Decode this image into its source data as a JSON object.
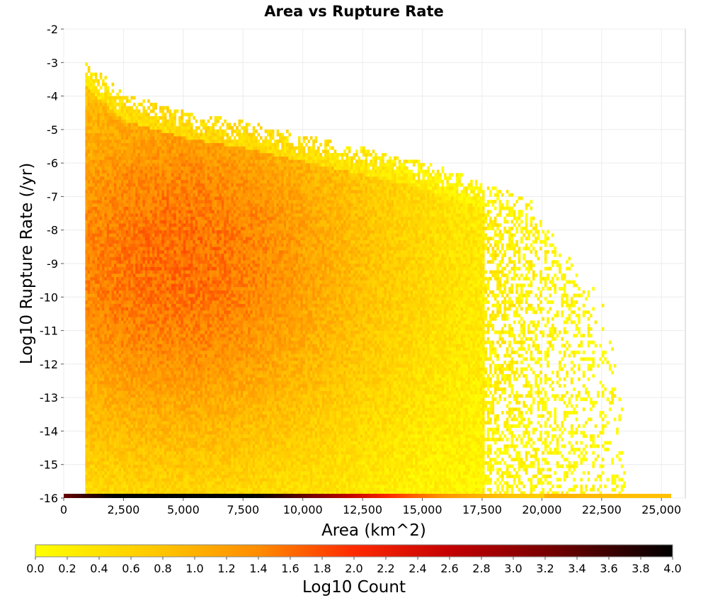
{
  "chart_data": {
    "type": "heatmap",
    "title": "Area vs Rupture Rate",
    "xlabel": "Area (km^2)",
    "ylabel": "Log10 Rupture Rate (/yr)",
    "xlim": [
      0,
      26000
    ],
    "ylim": [
      -16,
      -2
    ],
    "x_ticks": [
      0,
      2500,
      5000,
      7500,
      10000,
      12500,
      15000,
      17500,
      20000,
      22500,
      25000
    ],
    "x_tick_labels": [
      "0",
      "2,500",
      "5,000",
      "7,500",
      "10,000",
      "12,500",
      "15,000",
      "17,500",
      "20,000",
      "22,500",
      "25,000"
    ],
    "y_ticks": [
      -2,
      -3,
      -4,
      -5,
      -6,
      -7,
      -8,
      -9,
      -10,
      -11,
      -12,
      -13,
      -14,
      -15,
      -16
    ],
    "y_tick_labels": [
      "-2",
      "-3",
      "-4",
      "-5",
      "-6",
      "-7",
      "-8",
      "-9",
      "-10",
      "-11",
      "-12",
      "-13",
      "-14",
      "-15",
      "-16"
    ],
    "grid": true,
    "colorbar": {
      "label": "Log10 Count",
      "range": [
        0,
        4
      ],
      "ticks": [
        0.0,
        0.2,
        0.4,
        0.6,
        0.8,
        1.0,
        1.2,
        1.4,
        1.6,
        1.8,
        2.0,
        2.2,
        2.4,
        2.6,
        2.8,
        3.0,
        3.2,
        3.4,
        3.6,
        3.8,
        4.0
      ],
      "tick_labels": [
        "0.0",
        "0.2",
        "0.4",
        "0.6",
        "0.8",
        "1.0",
        "1.2",
        "1.4",
        "1.6",
        "1.8",
        "2.0",
        "2.2",
        "2.4",
        "2.6",
        "2.8",
        "3.0",
        "3.2",
        "3.4",
        "3.6",
        "3.8",
        "4.0"
      ],
      "colors": [
        "#ffff00",
        "#ffa500",
        "#ff0000",
        "#000000"
      ],
      "placement": "bottom"
    },
    "bin_width_x": 100,
    "bin_height_y": 0.1,
    "data_extent": {
      "area_min": 900,
      "area_max": 25400,
      "log_rate_min": -16,
      "log_rate_max": -3
    },
    "envelope": [
      {
        "area": 900,
        "log_rate_max": -3.0
      },
      {
        "area": 2500,
        "log_rate_max": -4.0
      },
      {
        "area": 5000,
        "log_rate_max": -4.5
      },
      {
        "area": 7500,
        "log_rate_max": -4.8
      },
      {
        "area": 10000,
        "log_rate_max": -5.2
      },
      {
        "area": 12500,
        "log_rate_max": -5.6
      },
      {
        "area": 15000,
        "log_rate_max": -6.0
      },
      {
        "area": 17500,
        "log_rate_max": -6.6
      },
      {
        "area": 19500,
        "log_rate_max": -7.2
      },
      {
        "area": 20500,
        "log_rate_max": -8.2
      },
      {
        "area": 22500,
        "log_rate_max": -10.0
      },
      {
        "area": 23500,
        "log_rate_max": -13.6
      },
      {
        "area": 25400,
        "log_rate_max": -16.0
      }
    ],
    "peak_density": {
      "area": 4500,
      "log_rate": -9.0,
      "log10_count": 1.6
    },
    "floor_row": {
      "log_rate": -16,
      "peak_log10_count": 4.0,
      "peak_area": 5000
    }
  }
}
